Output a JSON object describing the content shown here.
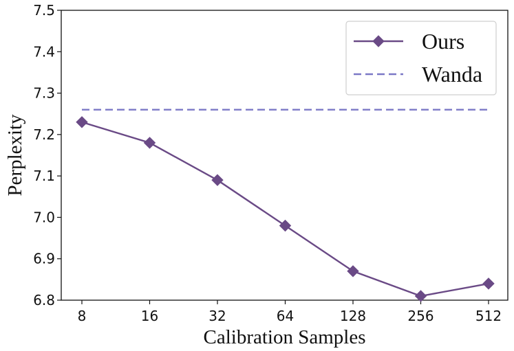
{
  "chart_data": {
    "type": "line",
    "xlabel": "Calibration Samples",
    "ylabel": "Perplexity",
    "categories": [
      "8",
      "16",
      "32",
      "64",
      "128",
      "256",
      "512"
    ],
    "ylim": [
      6.8,
      7.5
    ],
    "yticks": [
      "6.8",
      "6.9",
      "7.0",
      "7.1",
      "7.2",
      "7.3",
      "7.4",
      "7.5"
    ],
    "grid": false,
    "legend_position": "top-right",
    "series": [
      {
        "name": "Ours",
        "values": [
          7.23,
          7.18,
          7.09,
          6.98,
          6.87,
          6.81,
          6.84
        ],
        "color": "#6a4a86",
        "style": "solid",
        "marker": "diamond"
      },
      {
        "name": "Wanda",
        "values": [
          7.26,
          7.26,
          7.26,
          7.26,
          7.26,
          7.26,
          7.26
        ],
        "color": "#7b78c6",
        "style": "dashed",
        "marker": "none"
      }
    ]
  }
}
